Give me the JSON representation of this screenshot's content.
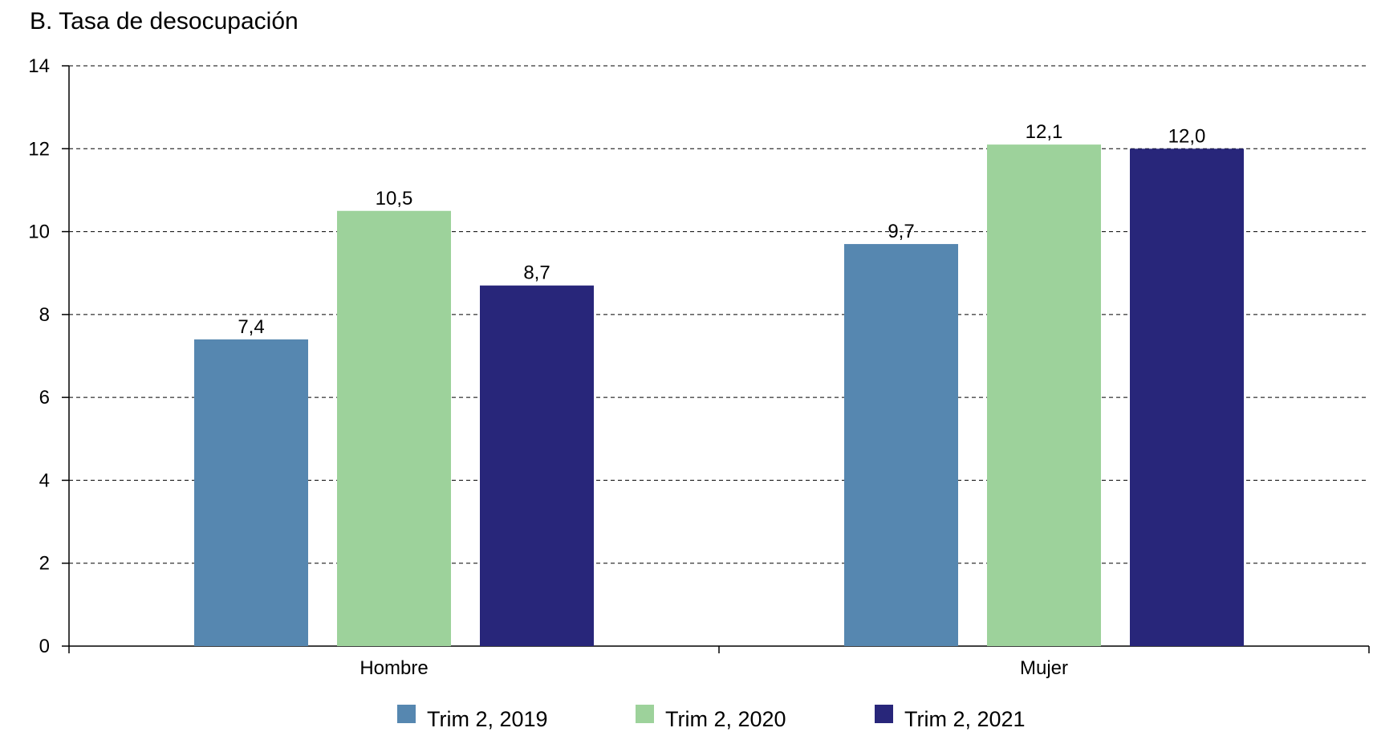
{
  "chart_data": {
    "type": "bar",
    "title": "B. Tasa de desocupación",
    "xlabel": "",
    "ylabel": "",
    "categories": [
      "Hombre",
      "Mujer"
    ],
    "series": [
      {
        "name": "Trim 2, 2019",
        "values": [
          7.4,
          9.7
        ],
        "labels": [
          "7,4",
          "9,7"
        ],
        "color": "#5687b0"
      },
      {
        "name": "Trim 2, 2020",
        "values": [
          10.5,
          12.1
        ],
        "labels": [
          "10,5",
          "12,1"
        ],
        "color": "#9dd29b"
      },
      {
        "name": "Trim 2, 2021",
        "values": [
          8.7,
          12.0
        ],
        "labels": [
          "8,7",
          "12,0"
        ],
        "color": "#28267a"
      }
    ],
    "ylim": [
      0,
      14
    ],
    "yticks": [
      0,
      2,
      4,
      6,
      8,
      10,
      12,
      14
    ],
    "grid": true,
    "grid_style": "dashed",
    "legend_position": "bottom"
  }
}
